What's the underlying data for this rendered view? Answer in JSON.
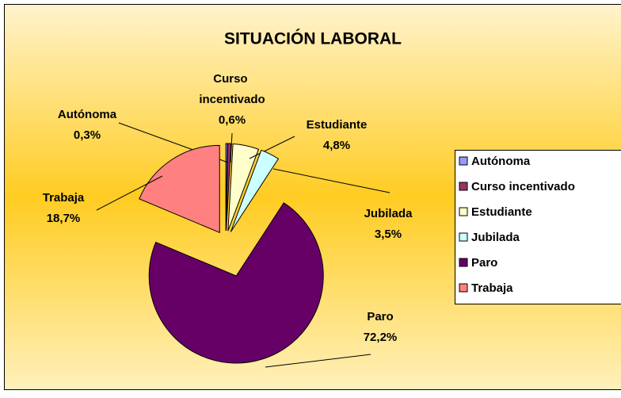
{
  "chart_data": {
    "type": "pie",
    "title": "SITUACIÓN LABORAL",
    "categories": [
      "Autónoma",
      "Curso incentivado",
      "Estudiante",
      "Jubilada",
      "Paro",
      "Trabaja"
    ],
    "values": [
      0.3,
      0.6,
      4.8,
      3.5,
      72.2,
      18.7
    ],
    "value_labels": [
      "0,3%",
      "0,6%",
      "4,8%",
      "3,5%",
      "72,2%",
      "18,7%"
    ],
    "colors": [
      "#9999ff",
      "#993366",
      "#ffffcc",
      "#ccffff",
      "#660066",
      "#ff8080"
    ],
    "legend": "right"
  }
}
